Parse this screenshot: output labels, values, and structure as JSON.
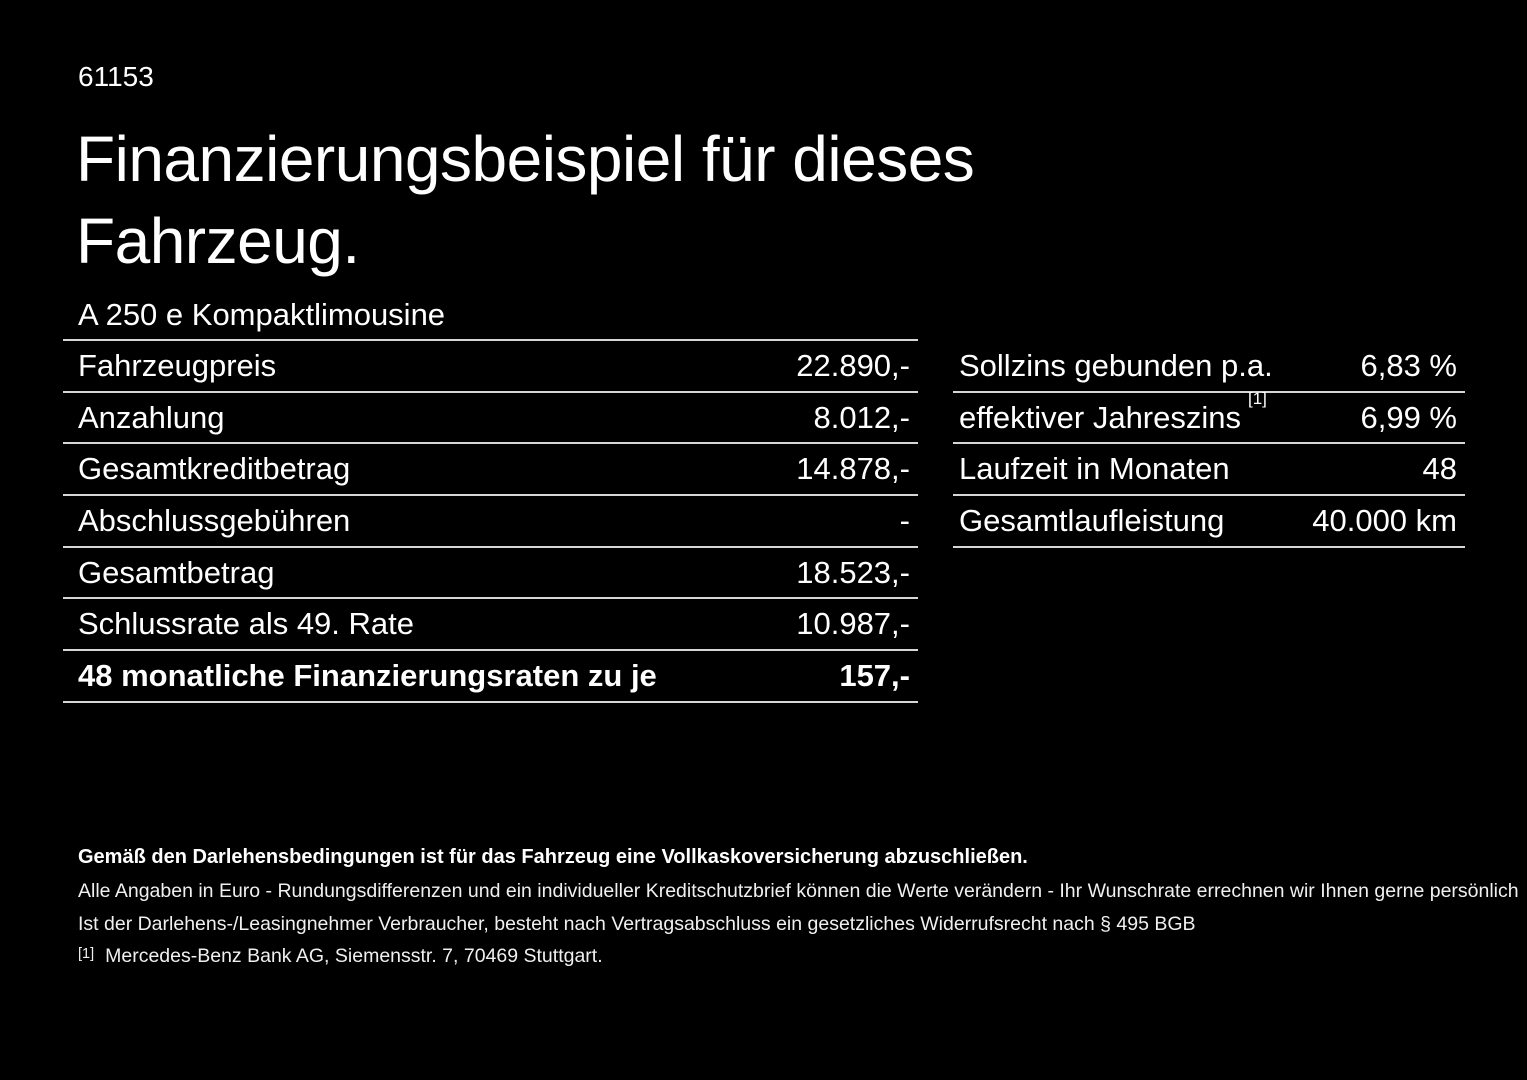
{
  "page": {
    "id_number": "61153",
    "title_line1": "Finanzierungsbeispiel für dieses",
    "title_line2": "Fahrzeug.",
    "vehicle_model": "A 250 e Kompaktlimousine"
  },
  "finance_table": {
    "rows": [
      {
        "label": "Fahrzeugpreis",
        "value": "22.890,-"
      },
      {
        "label": "Anzahlung",
        "value": "8.012,-"
      },
      {
        "label": "Gesamtkreditbetrag",
        "value": "14.878,-"
      },
      {
        "label": "Abschlussgebühren",
        "value": "-"
      },
      {
        "label": "Gesamtbetrag",
        "value": "18.523,-"
      },
      {
        "label": "Schlussrate als 49. Rate",
        "value": "10.987,-"
      },
      {
        "label": "48 monatliche Finanzierungsraten zu je",
        "value": "157,-"
      }
    ]
  },
  "conditions_table": {
    "rows": [
      {
        "label": "Sollzins gebunden p.a.",
        "value": "6,83 %"
      },
      {
        "label": "effektiver Jahreszins",
        "footnote": "[1]",
        "value": "6,99 %"
      },
      {
        "label": "Laufzeit in Monaten",
        "value": "48"
      },
      {
        "label": "Gesamtlaufleistung",
        "value": "40.000 km"
      }
    ]
  },
  "footer": {
    "bold_note": "Gemäß den Darlehensbedingungen ist für das Fahrzeug eine Vollkaskoversicherung abzuschließen.",
    "note1": "Alle Angaben in Euro - Rundungsdifferenzen und ein individueller Kreditschutzbrief können die Werte verändern - Ihr Wunschrate errechnen wir Ihnen gerne persönlich",
    "note2": "Ist der Darlehens-/Leasingnehmer Verbraucher, besteht nach Vertragsabschluss ein gesetzliches Widerrufsrecht nach § 495 BGB",
    "footnote_marker": "[1]",
    "footnote_text": "Mercedes-Benz Bank AG, Siemensstr. 7, 70469 Stuttgart."
  },
  "colors": {
    "background": "#000000",
    "text": "#ffffff",
    "divider": "#d6d6d6"
  }
}
